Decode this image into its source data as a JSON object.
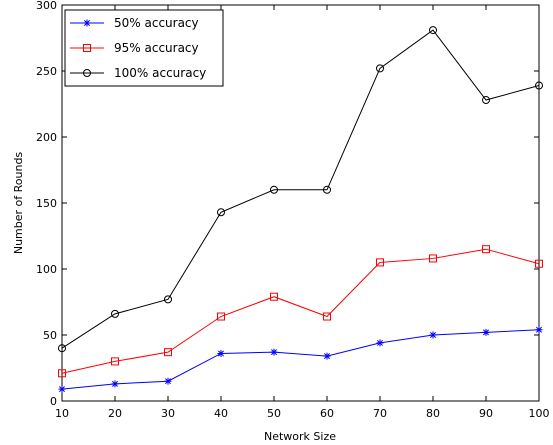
{
  "chart_data": {
    "type": "line",
    "title": "",
    "xlabel": "Network Size",
    "ylabel": "Number of Rounds",
    "x": [
      10,
      20,
      30,
      40,
      50,
      60,
      70,
      80,
      90,
      100
    ],
    "xlim": [
      10,
      100
    ],
    "ylim": [
      0,
      300
    ],
    "xticks": [
      "10",
      "20",
      "30",
      "40",
      "50",
      "60",
      "70",
      "80",
      "90",
      "100"
    ],
    "yticks": [
      "0",
      "50",
      "100",
      "150",
      "200",
      "250",
      "300"
    ],
    "grid": false,
    "legend_position": "top-left",
    "series": [
      {
        "name": "50% accuracy",
        "color": "#0000ff",
        "marker": "asterisk",
        "values": [
          9,
          13,
          15,
          36,
          37,
          34,
          44,
          50,
          52,
          54
        ]
      },
      {
        "name": "95% accuracy",
        "color": "#ff0000",
        "marker": "square",
        "values": [
          21,
          30,
          37,
          64,
          79,
          64,
          105,
          108,
          115,
          104
        ]
      },
      {
        "name": "100% accuracy",
        "color": "#000000",
        "marker": "circle",
        "values": [
          40,
          66,
          77,
          143,
          160,
          160,
          252,
          281,
          228,
          239
        ]
      }
    ]
  }
}
